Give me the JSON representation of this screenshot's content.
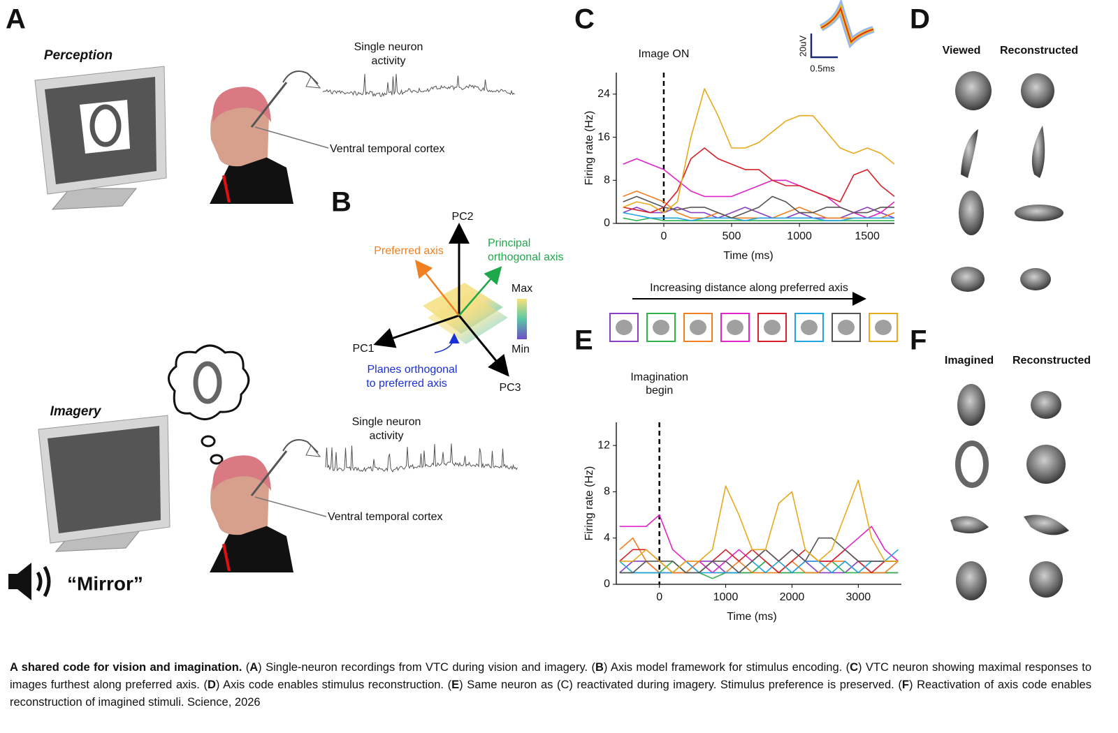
{
  "panel_labels": [
    "A",
    "B",
    "C",
    "D",
    "E",
    "F"
  ],
  "panel_a": {
    "perception_title": "Perception",
    "imagery_title": "Imagery",
    "neuron_label": [
      "Single neuron",
      "activity"
    ],
    "region_label": "Ventral temporal cortex",
    "spoken_word": "“Mirror”"
  },
  "panel_b": {
    "pc1": "PC1",
    "pc2": "PC2",
    "pc3": "PC3",
    "preferred_axis": "Preferred axis",
    "orthogonal_axis": [
      "Principal",
      "orthogonal axis"
    ],
    "planes": [
      "Planes orthogonal",
      "to preferred axis"
    ],
    "max": "Max",
    "min": "Min"
  },
  "panel_c_inset": {
    "amplitude": "20uV",
    "duration": "0.5ms"
  },
  "stimulus_axis_label": "Increasing distance along preferred axis",
  "panel_d": {
    "left": "Viewed",
    "right": "Reconstructed"
  },
  "panel_f": {
    "left": "Imagined",
    "right": "Reconstructed"
  },
  "chart_data": [
    {
      "type": "line",
      "xlabel": "Time (ms)",
      "ylabel": "Firing rate (Hz)",
      "marker": {
        "x": 0,
        "label": [
          "Image ON"
        ]
      },
      "xlim": [
        -350,
        1700
      ],
      "ylim": [
        0,
        28
      ],
      "xticks": [
        0,
        500,
        1000,
        1500
      ],
      "yticks": [
        0,
        8,
        16,
        24
      ],
      "x": [
        -300,
        -200,
        -100,
        0,
        100,
        200,
        300,
        400,
        500,
        600,
        700,
        800,
        900,
        1000,
        1100,
        1200,
        1300,
        1400,
        1500,
        1600,
        1700
      ],
      "series": [
        {
          "color": "#8a3fc4",
          "values": [
            2,
            3,
            2,
            2,
            3,
            2,
            2,
            1,
            2,
            3,
            2,
            1,
            1,
            2,
            1,
            1,
            1,
            2,
            3,
            2,
            1
          ]
        },
        {
          "color": "#2fb24a",
          "values": [
            1,
            0.5,
            1,
            0.5,
            0.5,
            0.5,
            0.5,
            0.5,
            0.5,
            0.5,
            0.5,
            0.5,
            0.5,
            0.5,
            0.5,
            0.5,
            0.5,
            0.5,
            0.5,
            0.5,
            0.5
          ]
        },
        {
          "color": "#f07f22",
          "values": [
            5,
            6,
            5,
            4,
            2,
            1,
            1,
            2,
            1,
            1,
            1,
            1,
            2,
            3,
            2,
            1,
            1,
            1,
            1,
            1,
            2
          ]
        },
        {
          "color": "#e024c8",
          "values": [
            11,
            12,
            11,
            10,
            8,
            6,
            5,
            5,
            5,
            6,
            7,
            8,
            8,
            7,
            6,
            5,
            3,
            2,
            1,
            2,
            4
          ]
        },
        {
          "color": "#d42029",
          "values": [
            3,
            2.5,
            2,
            3,
            6,
            12,
            14,
            12,
            11,
            10,
            10,
            8,
            7,
            7,
            6,
            5,
            4,
            9,
            10,
            7,
            5
          ]
        },
        {
          "color": "#22a3e0",
          "values": [
            2,
            1.5,
            1,
            1,
            1,
            0.5,
            1,
            1,
            1,
            0.5,
            1,
            1,
            1,
            1,
            1,
            0.5,
            0.5,
            1,
            1,
            1,
            1
          ]
        },
        {
          "color": "#555555",
          "values": [
            4,
            5,
            4,
            3,
            2.5,
            3,
            3,
            2,
            1,
            2,
            3,
            5,
            4,
            2,
            2,
            3,
            3,
            2,
            2,
            3,
            3
          ]
        },
        {
          "color": "#e8a91c",
          "values": [
            3,
            4,
            3.5,
            2,
            4,
            16,
            25,
            20,
            14,
            14,
            15,
            17,
            19,
            20,
            20,
            17,
            14,
            13,
            14,
            13,
            11
          ]
        }
      ]
    },
    {
      "type": "line",
      "xlabel": "Time (ms)",
      "ylabel": "Firing rate (Hz)",
      "marker": {
        "x": 0,
        "label": [
          "Imagination",
          "begin"
        ]
      },
      "xlim": [
        -650,
        3650
      ],
      "ylim": [
        0,
        14
      ],
      "xticks": [
        0,
        1000,
        2000,
        3000
      ],
      "yticks": [
        0,
        4,
        8,
        12
      ],
      "x": [
        -600,
        -400,
        -200,
        0,
        200,
        400,
        600,
        800,
        1000,
        1200,
        1400,
        1600,
        1800,
        2000,
        2200,
        2400,
        2600,
        2800,
        3000,
        3200,
        3400,
        3600
      ],
      "series": [
        {
          "color": "#8a3fc4",
          "values": [
            1,
            2,
            2,
            1,
            1,
            1,
            2,
            2,
            1,
            1,
            1,
            2,
            1,
            1,
            2,
            1,
            1,
            1,
            2,
            1,
            1,
            1
          ]
        },
        {
          "color": "#2fb24a",
          "values": [
            1,
            1,
            1,
            1,
            2,
            1,
            1,
            0.5,
            1,
            1,
            1,
            2,
            1,
            1,
            1,
            1,
            2,
            1,
            1,
            1,
            1,
            1
          ]
        },
        {
          "color": "#f07f22",
          "values": [
            3,
            4,
            2,
            1,
            1,
            1,
            2,
            1,
            1,
            2,
            1,
            1,
            1,
            2,
            1,
            1,
            2,
            2,
            1,
            1,
            1,
            2
          ]
        },
        {
          "color": "#e024c8",
          "values": [
            5,
            5,
            5,
            6,
            3,
            2,
            2,
            1,
            2,
            3,
            2,
            3,
            2,
            3,
            2,
            2,
            2,
            3,
            4,
            5,
            3,
            2
          ]
        },
        {
          "color": "#d42029",
          "values": [
            2,
            3,
            3,
            2,
            1,
            2,
            1,
            2,
            3,
            2,
            3,
            2,
            1,
            2,
            3,
            2,
            2,
            3,
            2,
            1,
            2,
            2
          ]
        },
        {
          "color": "#22a3e0",
          "values": [
            2,
            1,
            1,
            1,
            1,
            2,
            1,
            1,
            1,
            1,
            2,
            1,
            2,
            1,
            2,
            2,
            1,
            2,
            1,
            2,
            2,
            3
          ]
        },
        {
          "color": "#555555",
          "values": [
            1,
            1,
            2,
            2,
            2,
            1,
            1,
            2,
            2,
            1,
            2,
            3,
            2,
            3,
            2,
            4,
            4,
            3,
            2,
            2,
            2,
            2
          ]
        },
        {
          "color": "#e8a91c",
          "values": [
            2,
            2,
            3,
            2,
            1,
            2,
            2,
            3,
            8.5,
            6,
            3,
            3,
            7,
            8,
            3,
            2,
            3,
            6,
            9,
            4,
            2,
            2
          ]
        }
      ]
    }
  ],
  "caption": {
    "title": "A shared code for vision and imagination.",
    "items": [
      {
        "label": "A",
        "text": "Single-neuron recordings from VTC during vision and imagery."
      },
      {
        "label": "B",
        "text": "Axis model framework for stimulus encoding."
      },
      {
        "label": "C",
        "text": "VTC neuron showing maximal responses to images furthest along preferred axis."
      },
      {
        "label": "D",
        "text": "Axis code enables stimulus reconstruction."
      },
      {
        "label": "E",
        "text": "Same neuron as (C) reactivated during imagery. Stimulus preference is preserved."
      },
      {
        "label": "F",
        "text": "Reactivation of axis code enables reconstruction of imagined stimuli. Science, 2026"
      }
    ]
  }
}
